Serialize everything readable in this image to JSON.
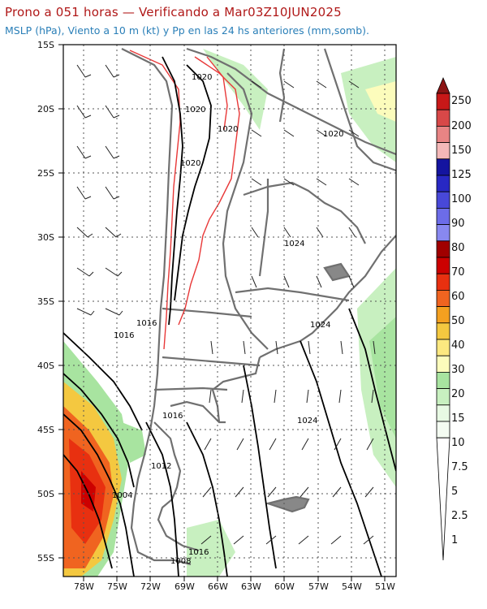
{
  "header": {
    "title": "Prono a 051 horas — Verificando a Mar03Z10JUN2025",
    "subtitle": "MSLP (hPa), Viento a 10 m (kt) y Pp en las 24 hs anteriores (mm,somb)."
  },
  "map": {
    "lat_labels": [
      "15S",
      "20S",
      "25S",
      "30S",
      "35S",
      "40S",
      "45S",
      "50S",
      "55S"
    ],
    "lon_labels": [
      "78W",
      "75W",
      "72W",
      "69W",
      "66W",
      "63W",
      "60W",
      "57W",
      "54W",
      "51W"
    ],
    "isobar_labels": [
      "1020",
      "1020",
      "1020",
      "1020",
      "1020",
      "1024",
      "1024",
      "1016",
      "1016",
      "1016",
      "1024",
      "1012",
      "1004",
      "1016",
      "1008"
    ]
  },
  "legend": {
    "levels": [
      "250",
      "200",
      "150",
      "125",
      "100",
      "90",
      "80",
      "70",
      "60",
      "50",
      "40",
      "30",
      "20",
      "15",
      "10",
      "7.5",
      "5",
      "2.5",
      "1"
    ],
    "colors": [
      "#c81818",
      "#d84848",
      "#e88484",
      "#f4b8b8",
      "#1414a0",
      "#2828c4",
      "#4848d8",
      "#6c6ce8",
      "#a00000",
      "#cc0000",
      "#e83010",
      "#f06420",
      "#f4a020",
      "#f4c840",
      "#fce880",
      "#fcfcbc",
      "#a8e4a0",
      "#c8f0c0",
      "#e8fae4"
    ]
  },
  "colors": {
    "title": "#b01818",
    "subtitle": "#2a7fb8",
    "coast": "#707070",
    "isobar": "#000000",
    "terrain": "#e83838"
  }
}
